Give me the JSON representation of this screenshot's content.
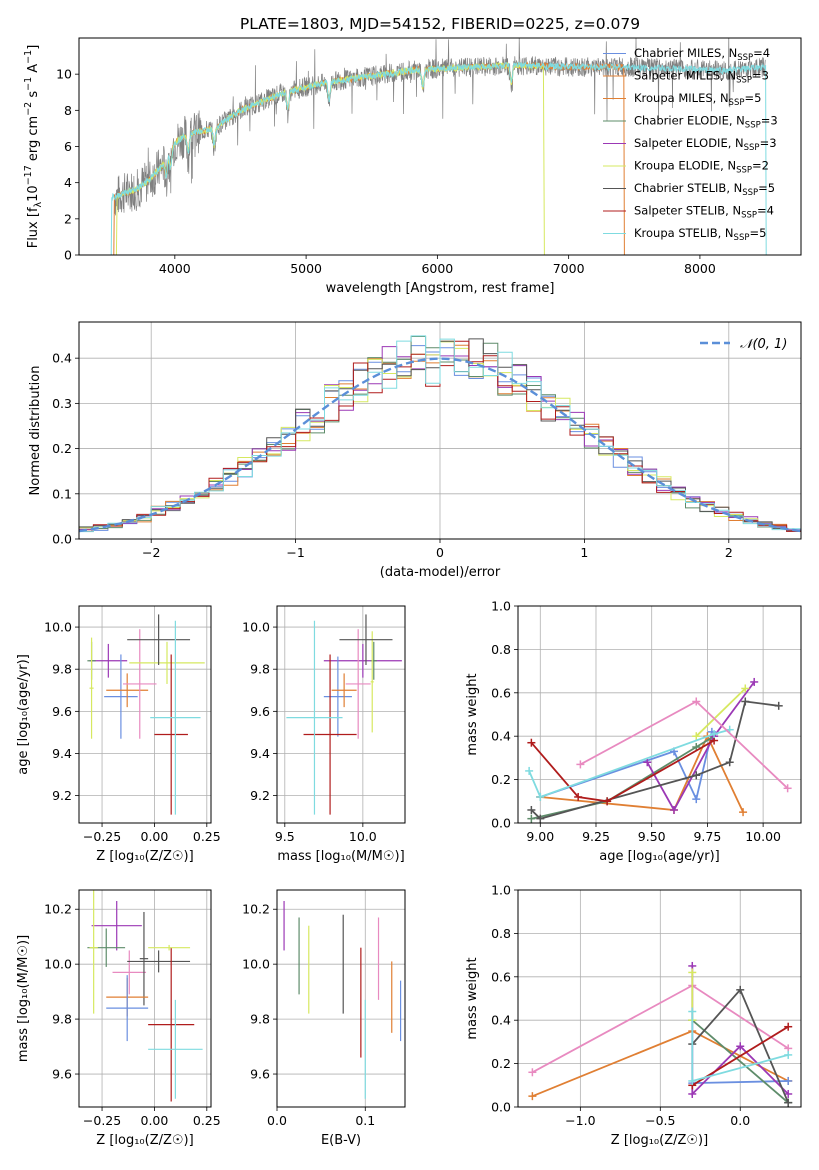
{
  "figure_title": "PLATE=1803, MJD=54152, FIBERID=0225, z=0.079",
  "colors": {
    "chabrier_miles": "#6a8fe0",
    "salpeter_miles": "#e07f33",
    "kroupa_miles": "#e07f33",
    "chabrier_elodie": "#5e8c6a",
    "salpeter_elodie": "#9b38b5",
    "kroupa_elodie": "#d6e860",
    "chabrier_stelib": "#555555",
    "salpeter_stelib": "#b01c1c",
    "kroupa_stelib": "#7fdbe0",
    "pink": "#e88ac0",
    "normal_dash": "#5b8fd8",
    "data_gray": "#808080"
  },
  "chart_data": [
    {
      "id": "spectrum",
      "type": "line",
      "xlabel": "wavelength [Angstrom, rest frame]",
      "ylabel": "Flux [f_λ10^-17 erg cm^-2 s^-1 A^-1]",
      "xlim": [
        3270,
        8770
      ],
      "ylim": [
        0,
        12
      ],
      "xticks": [
        4000,
        5000,
        6000,
        7000,
        8000
      ],
      "yticks": [
        0,
        2,
        4,
        6,
        8,
        10
      ],
      "grid": false,
      "legend_position": "top-right",
      "legend": [
        {
          "label": "Chabrier MILES, N",
          "sub": "SSP",
          "tail": "=4",
          "color": "#6a8fe0"
        },
        {
          "label": "Salpeter MILES, N",
          "sub": "SSP",
          "tail": "=3",
          "color": "#e07f33"
        },
        {
          "label": "Kroupa MILES, N",
          "sub": "SSP",
          "tail": "=5",
          "color": "#e07f33"
        },
        {
          "label": "Chabrier ELODIE, N",
          "sub": "SSP",
          "tail": "=3",
          "color": "#5e8c6a"
        },
        {
          "label": "Salpeter ELODIE, N",
          "sub": "SSP",
          "tail": "=3",
          "color": "#9b38b5"
        },
        {
          "label": "Kroupa ELODIE, N",
          "sub": "SSP",
          "tail": "=2",
          "color": "#d6e860"
        },
        {
          "label": "Chabrier STELIB, N",
          "sub": "SSP",
          "tail": "=5",
          "color": "#555555"
        },
        {
          "label": "Salpeter STELIB, N",
          "sub": "SSP",
          "tail": "=4",
          "color": "#b01c1c"
        },
        {
          "label": "Kroupa STELIB, N",
          "sub": "SSP",
          "tail": "=5",
          "color": "#7fdbe0"
        }
      ],
      "continuum": [
        [
          3550,
          3.2
        ],
        [
          3600,
          3.4
        ],
        [
          3700,
          3.6
        ],
        [
          3800,
          4.1
        ],
        [
          3900,
          4.9
        ],
        [
          4000,
          6.2
        ],
        [
          4100,
          6.7
        ],
        [
          4300,
          7.0
        ],
        [
          4500,
          8.0
        ],
        [
          4800,
          8.9
        ],
        [
          5000,
          9.3
        ],
        [
          5200,
          9.6
        ],
        [
          5500,
          9.9
        ],
        [
          5800,
          10.2
        ],
        [
          6000,
          10.3
        ],
        [
          6300,
          10.4
        ],
        [
          6600,
          10.5
        ],
        [
          7000,
          10.4
        ],
        [
          7400,
          10.4
        ],
        [
          7800,
          10.3
        ],
        [
          8200,
          10.2
        ],
        [
          8500,
          10.4
        ]
      ],
      "models": [
        {
          "start": 3540,
          "end": 7420,
          "color": "#e07f33"
        },
        {
          "start": 3560,
          "end": 6810,
          "color": "#d6e860"
        },
        {
          "start": 3520,
          "end": 8500,
          "color": "#7fdbe0"
        }
      ]
    },
    {
      "id": "residuals",
      "type": "histogram",
      "xlabel": "(data-model)/error",
      "ylabel": "Normed distribution",
      "xlim": [
        -2.5,
        2.5
      ],
      "ylim": [
        0,
        0.48
      ],
      "xticks": [
        -2,
        -1,
        0,
        1,
        2
      ],
      "xtick_labels": [
        "−2",
        "−1",
        "0",
        "1",
        "2"
      ],
      "yticks": [
        0.0,
        0.1,
        0.2,
        0.3,
        0.4
      ],
      "grid": true,
      "bin_width": 0.1,
      "series_colors": [
        "#6a8fe0",
        "#e07f33",
        "#5e8c6a",
        "#9b38b5",
        "#d6e860",
        "#555555",
        "#b01c1c",
        "#7fdbe0"
      ],
      "legend": {
        "label": "𝒩(0, 1)",
        "color": "#5b8fd8",
        "position": "top-right"
      }
    },
    {
      "id": "z-age",
      "type": "errorbar",
      "xlabel": "Z [log₁₀(Z/Z☉)]",
      "ylabel": "age [log₁₀(age/yr)]",
      "xlim": [
        -0.36,
        0.27
      ],
      "ylim": [
        9.07,
        10.1
      ],
      "xticks": [
        -0.25,
        0,
        0.25
      ],
      "xtick_labels": [
        "−0.25",
        "0.00",
        "0.25"
      ],
      "yticks": [
        9.2,
        9.4,
        9.6,
        9.8,
        10.0
      ],
      "grid": true,
      "points": [
        {
          "x": -0.22,
          "y": 9.84,
          "xerr": 0.09,
          "yerr": 0.08,
          "color": "#9b38b5"
        },
        {
          "x": -0.3,
          "y": 9.84,
          "xerr": 0.02,
          "yerr": 0.09,
          "color": "#5e8c6a"
        },
        {
          "x": -0.3,
          "y": 9.71,
          "xerr": 0.01,
          "yerr": 0.24,
          "color": "#d6e860"
        },
        {
          "x": -0.16,
          "y": 9.67,
          "xerr": 0.08,
          "yerr": 0.2,
          "color": "#6a8fe0"
        },
        {
          "x": -0.13,
          "y": 9.7,
          "xerr": 0.1,
          "yerr": 0.08,
          "color": "#e07f33"
        },
        {
          "x": -0.07,
          "y": 9.73,
          "xerr": 0.08,
          "yerr": 0.26,
          "color": "#e88ac0"
        },
        {
          "x": 0.06,
          "y": 9.83,
          "xerr": 0.18,
          "yerr": 0.1,
          "color": "#d6e860"
        },
        {
          "x": 0.02,
          "y": 9.94,
          "xerr": 0.15,
          "yerr": 0.12,
          "color": "#555555"
        },
        {
          "x": 0.08,
          "y": 9.49,
          "xerr": 0.08,
          "yerr": 0.38,
          "color": "#b01c1c"
        },
        {
          "x": 0.1,
          "y": 9.57,
          "xerr": 0.12,
          "yerr": 0.46,
          "color": "#7fdbe0"
        }
      ]
    },
    {
      "id": "mass-age",
      "type": "errorbar",
      "xlabel": "mass [log₁₀(M/M☉)]",
      "ylabel": "",
      "xlim": [
        9.45,
        10.27
      ],
      "ylim": [
        9.07,
        10.1
      ],
      "xticks": [
        9.5,
        10.0
      ],
      "xtick_labels": [
        "9.5",
        "10.0"
      ],
      "yticks": [
        9.2,
        9.4,
        9.6,
        9.8,
        10.0
      ],
      "grid": true,
      "points": [
        {
          "x": 10.0,
          "y": 9.84,
          "xerr": 0.25,
          "yerr": 0.08,
          "color": "#9b38b5"
        },
        {
          "x": 10.07,
          "y": 9.84,
          "xerr": 0.02,
          "yerr": 0.09,
          "color": "#5e8c6a"
        },
        {
          "x": 10.06,
          "y": 9.74,
          "xerr": 0.01,
          "yerr": 0.24,
          "color": "#d6e860"
        },
        {
          "x": 9.84,
          "y": 9.67,
          "xerr": 0.09,
          "yerr": 0.19,
          "color": "#6a8fe0"
        },
        {
          "x": 9.88,
          "y": 9.7,
          "xerr": 0.08,
          "yerr": 0.08,
          "color": "#e07f33"
        },
        {
          "x": 9.97,
          "y": 9.73,
          "xerr": 0.08,
          "yerr": 0.26,
          "color": "#e88ac0"
        },
        {
          "x": 10.02,
          "y": 9.94,
          "xerr": 0.17,
          "yerr": 0.12,
          "color": "#555555"
        },
        {
          "x": 9.79,
          "y": 9.49,
          "xerr": 0.17,
          "yerr": 0.38,
          "color": "#b01c1c"
        },
        {
          "x": 9.69,
          "y": 9.57,
          "xerr": 0.18,
          "yerr": 0.46,
          "color": "#7fdbe0"
        }
      ]
    },
    {
      "id": "age-weight",
      "type": "line",
      "xlabel": "age [log₁₀(age/yr)]",
      "ylabel": "mass weight",
      "xlim": [
        8.9,
        10.17
      ],
      "ylim": [
        0,
        1.0
      ],
      "xticks": [
        9.0,
        9.25,
        9.5,
        9.75,
        10.0
      ],
      "xtick_labels": [
        "9.00",
        "9.25",
        "9.50",
        "9.75",
        "10.00"
      ],
      "yticks": [
        0.0,
        0.2,
        0.4,
        0.6,
        0.8,
        1.0
      ],
      "grid": true,
      "series": [
        {
          "color": "#6a8fe0",
          "points": [
            [
              9.0,
              0.12
            ],
            [
              9.6,
              0.33
            ],
            [
              9.7,
              0.11
            ],
            [
              9.77,
              0.42
            ]
          ]
        },
        {
          "color": "#e07f33",
          "points": [
            [
              9.0,
              0.12
            ],
            [
              9.6,
              0.06
            ],
            [
              9.75,
              0.4
            ],
            [
              9.91,
              0.05
            ]
          ]
        },
        {
          "color": "#5e8c6a",
          "points": [
            [
              8.96,
              0.02
            ],
            [
              9.3,
              0.1
            ],
            [
              9.7,
              0.35
            ],
            [
              9.78,
              0.4
            ]
          ]
        },
        {
          "color": "#9b38b5",
          "points": [
            [
              9.48,
              0.28
            ],
            [
              9.6,
              0.06
            ],
            [
              9.78,
              0.4
            ],
            [
              9.96,
              0.65
            ]
          ]
        },
        {
          "color": "#d6e860",
          "points": [
            [
              9.7,
              0.4
            ],
            [
              9.92,
              0.62
            ]
          ]
        },
        {
          "color": "#555555",
          "points": [
            [
              8.96,
              0.06
            ],
            [
              9.0,
              0.02
            ],
            [
              9.7,
              0.22
            ],
            [
              9.85,
              0.28
            ],
            [
              9.92,
              0.56
            ],
            [
              10.07,
              0.54
            ]
          ]
        },
        {
          "color": "#b01c1c",
          "points": [
            [
              8.96,
              0.37
            ],
            [
              9.17,
              0.12
            ],
            [
              9.3,
              0.1
            ],
            [
              9.78,
              0.38
            ]
          ]
        },
        {
          "color": "#7fdbe0",
          "points": [
            [
              8.95,
              0.24
            ],
            [
              9.0,
              0.12
            ],
            [
              9.78,
              0.41
            ],
            [
              9.85,
              0.43
            ]
          ]
        },
        {
          "color": "#e88ac0",
          "points": [
            [
              9.18,
              0.27
            ],
            [
              9.7,
              0.56
            ],
            [
              10.11,
              0.16
            ]
          ]
        }
      ]
    },
    {
      "id": "z-mass",
      "type": "errorbar",
      "xlabel": "Z [log₁₀(Z/Z☉)]",
      "ylabel": "mass [log₁₀(M/M☉)]",
      "xlim": [
        -0.36,
        0.27
      ],
      "ylim": [
        9.48,
        10.27
      ],
      "xticks": [
        -0.25,
        0,
        0.25
      ],
      "xtick_labels": [
        "−0.25",
        "0.00",
        "0.25"
      ],
      "yticks": [
        9.6,
        9.8,
        10.0,
        10.2
      ],
      "grid": true,
      "points": [
        {
          "x": -0.18,
          "y": 10.14,
          "xerr": 0.12,
          "yerr": 0.09,
          "color": "#9b38b5"
        },
        {
          "x": -0.23,
          "y": 10.06,
          "xerr": 0.09,
          "yerr": 0.07,
          "color": "#5e8c6a"
        },
        {
          "x": -0.29,
          "y": 10.06,
          "xerr": 0.02,
          "yerr": 0.24,
          "color": "#d6e860"
        },
        {
          "x": -0.12,
          "y": 9.97,
          "xerr": 0.08,
          "yerr": 0.08,
          "color": "#e88ac0"
        },
        {
          "x": -0.05,
          "y": 10.02,
          "xerr": 0.02,
          "yerr": 0.17,
          "color": "#555555"
        },
        {
          "x": 0.02,
          "y": 10.01,
          "xerr": 0.15,
          "yerr": 0.04,
          "color": "#555555"
        },
        {
          "x": -0.13,
          "y": 9.88,
          "xerr": 0.1,
          "yerr": 0.07,
          "color": "#e07f33"
        },
        {
          "x": -0.13,
          "y": 9.84,
          "xerr": 0.1,
          "yerr": 0.12,
          "color": "#6a8fe0"
        },
        {
          "x": 0.08,
          "y": 9.78,
          "xerr": 0.11,
          "yerr": 0.28,
          "color": "#b01c1c"
        },
        {
          "x": 0.1,
          "y": 9.69,
          "xerr": 0.13,
          "yerr": 0.18,
          "color": "#7fdbe0"
        },
        {
          "x": 0.07,
          "y": 10.06,
          "xerr": 0.1,
          "yerr": 0.01,
          "color": "#d6e860"
        }
      ]
    },
    {
      "id": "ebv-mass",
      "type": "errorbar",
      "xlabel": "E(B-V)",
      "ylabel": "",
      "xlim": [
        0,
        0.145
      ],
      "ylim": [
        9.48,
        10.27
      ],
      "xticks": [
        0.0,
        0.1
      ],
      "xtick_labels": [
        "0.0",
        "0.1"
      ],
      "yticks": [
        9.6,
        9.8,
        10.0,
        10.2
      ],
      "grid": true,
      "points": [
        {
          "x": 0.008,
          "y": 10.14,
          "xerr": 0,
          "yerr": 0.09,
          "color": "#9b38b5"
        },
        {
          "x": 0.025,
          "y": 10.03,
          "xerr": 0,
          "yerr": 0.14,
          "color": "#5e8c6a"
        },
        {
          "x": 0.036,
          "y": 9.98,
          "xerr": 0,
          "yerr": 0.16,
          "color": "#d6e860"
        },
        {
          "x": 0.075,
          "y": 10.0,
          "xerr": 0,
          "yerr": 0.18,
          "color": "#555555"
        },
        {
          "x": 0.095,
          "y": 9.86,
          "xerr": 0,
          "yerr": 0.2,
          "color": "#b01c1c"
        },
        {
          "x": 0.1,
          "y": 9.69,
          "xerr": 0,
          "yerr": 0.18,
          "color": "#7fdbe0"
        },
        {
          "x": 0.115,
          "y": 10.02,
          "xerr": 0,
          "yerr": 0.15,
          "color": "#e88ac0"
        },
        {
          "x": 0.13,
          "y": 9.88,
          "xerr": 0,
          "yerr": 0.13,
          "color": "#e07f33"
        },
        {
          "x": 0.14,
          "y": 9.83,
          "xerr": 0,
          "yerr": 0.11,
          "color": "#6a8fe0"
        }
      ]
    },
    {
      "id": "z-weight",
      "type": "line",
      "xlabel": "Z [log₁₀(Z/Z☉)]",
      "ylabel": "mass weight",
      "xlim": [
        -1.39,
        0.38
      ],
      "ylim": [
        0,
        1.0
      ],
      "xticks": [
        -1.0,
        -0.5,
        0.0
      ],
      "xtick_labels": [
        "−1.0",
        "−0.5",
        "0.0"
      ],
      "yticks": [
        0.0,
        0.2,
        0.4,
        0.6,
        0.8,
        1.0
      ],
      "grid": true,
      "series": [
        {
          "color": "#e07f33",
          "points": [
            [
              -1.3,
              0.05
            ],
            [
              -0.3,
              0.35
            ],
            [
              0.3,
              0.12
            ]
          ]
        },
        {
          "color": "#e88ac0",
          "points": [
            [
              -1.3,
              0.16
            ],
            [
              -0.3,
              0.56
            ],
            [
              0.3,
              0.27
            ]
          ]
        },
        {
          "color": "#6a8fe0",
          "points": [
            [
              -0.3,
              0.11
            ],
            [
              0.3,
              0.12
            ]
          ]
        },
        {
          "color": "#5e8c6a",
          "points": [
            [
              -0.3,
              0.4
            ],
            [
              0.3,
              0.02
            ]
          ]
        },
        {
          "color": "#9b38b5",
          "points": [
            [
              -0.3,
              0.65
            ],
            [
              -0.3,
              0.06
            ],
            [
              0.0,
              0.28
            ],
            [
              0.3,
              0.06
            ]
          ]
        },
        {
          "color": "#d6e860",
          "points": [
            [
              -0.3,
              0.62
            ],
            [
              -0.3,
              0.4
            ]
          ]
        },
        {
          "color": "#555555",
          "points": [
            [
              -0.3,
              0.29
            ],
            [
              0.0,
              0.54
            ],
            [
              0.3,
              0.02
            ]
          ]
        },
        {
          "color": "#b01c1c",
          "points": [
            [
              -0.3,
              0.1
            ],
            [
              0.3,
              0.37
            ]
          ]
        },
        {
          "color": "#7fdbe0",
          "points": [
            [
              -0.3,
              0.44
            ],
            [
              -0.3,
              0.12
            ],
            [
              0.3,
              0.24
            ]
          ]
        }
      ]
    }
  ]
}
